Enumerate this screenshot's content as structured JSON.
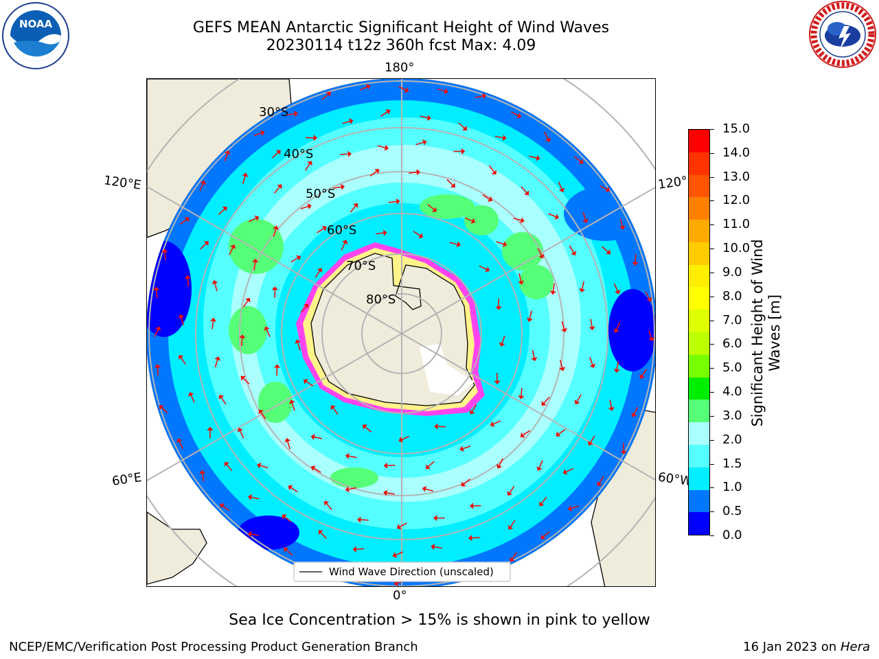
{
  "title": {
    "line1": "GEFS MEAN Antarctic Significant Height of Wind Waves",
    "line2": "20230114 t12z 360h fcst   Max: 4.09"
  },
  "map": {
    "projection": "south-polar-stereographic",
    "longitude_labels": {
      "top": "180°",
      "bottom": "0°",
      "upper_left": "120°E",
      "upper_right": "120°",
      "lower_left": "60°E",
      "lower_right": "60°W"
    },
    "latitude_labels": [
      "30°S",
      "40°S",
      "50°S",
      "60°S",
      "70°S",
      "80°S"
    ],
    "legend_label": "Wind Wave Direction (unscaled)",
    "land_color": "#efecdc",
    "arrow_color": "#e8110d"
  },
  "colorbar": {
    "label_line1": "Significant Height of Wind",
    "label_line2": "Waves [m]",
    "ticks": [
      "15.0",
      "14.0",
      "13.0",
      "12.0",
      "11.0",
      "10.0",
      "9.0",
      "8.0",
      "7.0",
      "6.0",
      "5.0",
      "4.0",
      "3.0",
      "2.0",
      "1.5",
      "1.0",
      "0.5",
      "0.0"
    ],
    "colors_top_to_bottom": [
      "#ff0000",
      "#ff3300",
      "#ff5500",
      "#ff8000",
      "#ffaa00",
      "#ffcc00",
      "#ffee00",
      "#ffff00",
      "#ddff00",
      "#bbff00",
      "#77ff00",
      "#00ee00",
      "#55ff77",
      "#aaffff",
      "#55ffff",
      "#00eeff",
      "#0077ff",
      "#0000ff"
    ]
  },
  "footer": {
    "note": "Sea Ice Concentration > 15% is shown in pink to yellow",
    "left": "NCEP/EMC/Verification Post Processing Product Generation Branch",
    "right_date": "16 Jan 2023 on ",
    "right_host": "Hera"
  },
  "logos": {
    "noaa": "NOAA",
    "nws": "NATIONAL WEATHER SERVICE"
  }
}
